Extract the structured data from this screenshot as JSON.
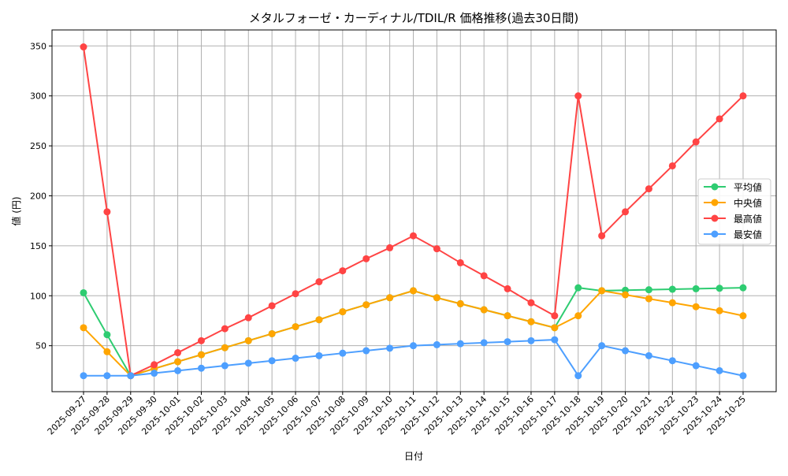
{
  "chart_data": {
    "type": "line",
    "title": "メタルフォーゼ・カーディナル/TDIL/R 価格推移(過去30日間)",
    "xlabel": "日付",
    "ylabel": "値 (円)",
    "ylim": [
      4,
      366
    ],
    "yticks": [
      50,
      100,
      150,
      200,
      250,
      300,
      350
    ],
    "grid": true,
    "legend_position": "center-right",
    "x": [
      "2025-09-27",
      "2025-09-28",
      "2025-09-29",
      "2025-09-30",
      "2025-10-01",
      "2025-10-02",
      "2025-10-03",
      "2025-10-04",
      "2025-10-05",
      "2025-10-06",
      "2025-10-07",
      "2025-10-08",
      "2025-10-09",
      "2025-10-10",
      "2025-10-11",
      "2025-10-12",
      "2025-10-13",
      "2025-10-14",
      "2025-10-15",
      "2025-10-16",
      "2025-10-17",
      "2025-10-18",
      "2025-10-19",
      "2025-10-20",
      "2025-10-21",
      "2025-10-22",
      "2025-10-23",
      "2025-10-24",
      "2025-10-25"
    ],
    "series": [
      {
        "name": "平均値",
        "color": "#2ecc71",
        "values": [
          103,
          61,
          20,
          27,
          34,
          41,
          48,
          55,
          62,
          69,
          76,
          84,
          91,
          98,
          105,
          98,
          92,
          86,
          80,
          74,
          68,
          108,
          105,
          105.5,
          106,
          106.5,
          107,
          107.5,
          108
        ]
      },
      {
        "name": "中央値",
        "color": "#ffa500",
        "values": [
          68,
          44,
          20,
          27,
          34,
          41,
          48,
          55,
          62,
          69,
          76,
          84,
          91,
          98,
          105,
          98,
          92,
          86,
          80,
          74,
          68,
          80,
          105,
          101,
          97,
          93,
          89,
          85,
          80
        ]
      },
      {
        "name": "最高値",
        "color": "#ff4444",
        "values": [
          349,
          184,
          20,
          31,
          43,
          55,
          67,
          78,
          90,
          102,
          114,
          125,
          137,
          148,
          160,
          147,
          133,
          120,
          107,
          93,
          80,
          300,
          160,
          184,
          207,
          230,
          254,
          277,
          300
        ]
      },
      {
        "name": "最安値",
        "color": "#4d9fff",
        "values": [
          20,
          20,
          20,
          22.5,
          25,
          27.5,
          30,
          32.5,
          35,
          37.5,
          40,
          42.5,
          45,
          47.5,
          50,
          51,
          52,
          53,
          54,
          55,
          56,
          20,
          50,
          45,
          40,
          35,
          30,
          25,
          20
        ]
      }
    ]
  }
}
